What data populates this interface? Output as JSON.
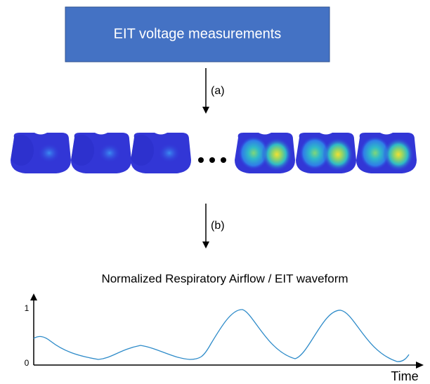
{
  "box": {
    "label": "EIT voltage measurements"
  },
  "arrows": [
    {
      "label": "(a)"
    },
    {
      "label": "(b)"
    }
  ],
  "waveform": {
    "title": "Normalized Respiratory Airflow / EIT waveform",
    "y_labels": [
      "0",
      "1"
    ],
    "x_label": "Time"
  }
}
